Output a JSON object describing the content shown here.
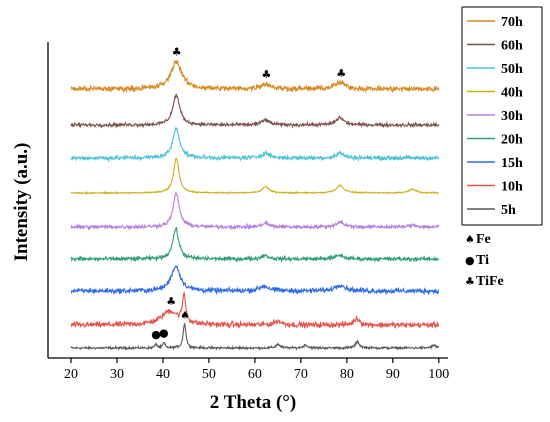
{
  "chart_data": {
    "type": "line",
    "xlabel": "2 Theta (°)",
    "ylabel": "Intensity (a.u.)",
    "xlim": [
      15,
      102
    ],
    "x_ticks": [
      20,
      30,
      40,
      50,
      60,
      70,
      80,
      90,
      100
    ],
    "y_ticks_shown": false,
    "legend_position": "right",
    "series": [
      {
        "name": "5h",
        "color": "#595959",
        "noise": 0.9,
        "offset": 0,
        "peaks": [
          [
            38.5,
            3,
            0.3
          ],
          [
            40.2,
            4,
            0.3
          ],
          [
            44.7,
            20,
            0.35
          ],
          [
            65.0,
            3,
            0.5
          ],
          [
            71.0,
            2.5,
            0.5
          ],
          [
            82.3,
            5,
            0.5
          ],
          [
            99.0,
            2,
            0.6
          ]
        ]
      },
      {
        "name": "10h",
        "color": "#e5534b",
        "noise": 2.2,
        "offset": 1,
        "peaks": [
          [
            41.5,
            11,
            2.2
          ],
          [
            44.6,
            22,
            0.4
          ],
          [
            65.0,
            3,
            1.0
          ],
          [
            82.2,
            5,
            0.8
          ]
        ]
      },
      {
        "name": "15h",
        "color": "#2d6be4",
        "noise": 2.0,
        "offset": 2,
        "peaks": [
          [
            42.8,
            20,
            1.2
          ],
          [
            62.0,
            4,
            1.2
          ],
          [
            78.5,
            5,
            1.3
          ]
        ]
      },
      {
        "name": "20h",
        "color": "#2e9e78",
        "noise": 1.6,
        "offset": 3,
        "peaks": [
          [
            42.8,
            24,
            0.8
          ],
          [
            62.2,
            3,
            0.9
          ],
          [
            78.4,
            3,
            1.0
          ]
        ]
      },
      {
        "name": "30h",
        "color": "#b57edc",
        "noise": 1.4,
        "offset": 4,
        "peaks": [
          [
            42.9,
            27,
            0.8
          ],
          [
            62.3,
            3,
            0.9
          ],
          [
            78.5,
            4,
            1.0
          ],
          [
            94.5,
            1.5,
            1.0
          ]
        ]
      },
      {
        "name": "40h",
        "color": "#c9b219",
        "noise": 0.5,
        "offset": 5,
        "peaks": [
          [
            42.9,
            28,
            0.7
          ],
          [
            62.3,
            5,
            0.9
          ],
          [
            78.5,
            6,
            1.0
          ],
          [
            94.3,
            3,
            1.0
          ]
        ]
      },
      {
        "name": "50h",
        "color": "#4cc3d6",
        "noise": 1.7,
        "offset": 6,
        "peaks": [
          [
            42.9,
            24,
            0.9
          ],
          [
            62.3,
            4,
            1.0
          ],
          [
            78.5,
            4,
            1.0
          ]
        ]
      },
      {
        "name": "60h",
        "color": "#7a5148",
        "noise": 1.4,
        "offset": 7,
        "peaks": [
          [
            42.9,
            24,
            0.9
          ],
          [
            62.3,
            4,
            1.0
          ],
          [
            78.5,
            6,
            1.0
          ]
        ]
      },
      {
        "name": "70h",
        "color": "#d68a1f",
        "noise": 2.2,
        "offset": 8,
        "peaks": [
          [
            42.9,
            22,
            1.4
          ],
          [
            62.3,
            4,
            1.4
          ],
          [
            78.5,
            5,
            1.4
          ]
        ]
      }
    ],
    "phase_key": [
      {
        "symbol": "♠",
        "label": "Fe"
      },
      {
        "symbol": "●",
        "label": "Ti"
      },
      {
        "symbol": "♣",
        "label": "TiFe"
      }
    ],
    "annotations": [
      {
        "symbol": "♣",
        "x": 43.0,
        "series": "70h"
      },
      {
        "symbol": "♣",
        "x": 62.5,
        "series": "70h"
      },
      {
        "symbol": "♣",
        "x": 78.8,
        "series": "70h"
      },
      {
        "symbol": "♣",
        "x": 41.8,
        "series": "10h"
      },
      {
        "symbol": "♠",
        "x": 44.8,
        "series": "5h"
      },
      {
        "symbol": "●",
        "x": 38.5,
        "series": "5h"
      },
      {
        "symbol": "●",
        "x": 40.2,
        "series": "5h"
      }
    ]
  }
}
